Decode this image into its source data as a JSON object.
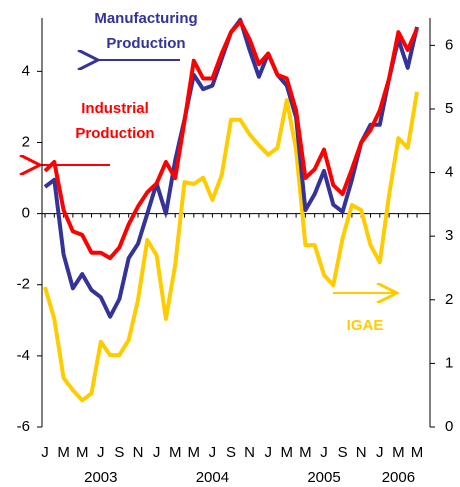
{
  "chart_data": {
    "type": "line",
    "categories": [
      "J",
      null,
      "M",
      null,
      "M",
      null,
      "J",
      null,
      "S",
      null,
      "N",
      null,
      "J",
      null,
      "M",
      null,
      "M",
      null,
      "J",
      null,
      "S",
      null,
      "N",
      null,
      "J",
      null,
      "M",
      null,
      "M",
      null,
      "J",
      null,
      "S",
      null,
      "N",
      null,
      "J",
      null,
      "M",
      null,
      "M"
    ],
    "year_labels": [
      "2003",
      "2004",
      "2005",
      "2006"
    ],
    "ylim": [
      -6,
      5.5
    ],
    "yticks": [
      -6,
      -4,
      -2,
      0,
      2,
      4
    ],
    "y2lim": [
      0,
      6.43
    ],
    "y2ticks": [
      0,
      1,
      2,
      3,
      4,
      5,
      6
    ],
    "series": [
      {
        "name": "IGAE",
        "color": "#ffcc00",
        "axis": "y2",
        "values": [
          2.2,
          1.7,
          0.77,
          0.58,
          0.42,
          0.53,
          1.34,
          1.13,
          1.13,
          1.37,
          2.0,
          2.94,
          2.7,
          1.7,
          2.55,
          3.85,
          3.82,
          3.92,
          3.57,
          3.96,
          4.83,
          4.83,
          4.6,
          4.43,
          4.28,
          4.39,
          5.14,
          4.36,
          2.86,
          2.86,
          2.39,
          2.23,
          2.97,
          3.49,
          3.41,
          2.86,
          2.59,
          3.65,
          4.54,
          4.39,
          5.27
        ]
      },
      {
        "name": "Manufacturing Production",
        "color": "#333399",
        "values": [
          0.75,
          0.95,
          -1.15,
          -2.1,
          -1.7,
          -2.15,
          -2.35,
          -2.9,
          -2.4,
          -1.25,
          -0.85,
          0,
          0.85,
          0,
          1.5,
          2.65,
          3.9,
          3.5,
          3.6,
          4.35,
          5.1,
          5.45,
          4.6,
          3.85,
          4.5,
          3.9,
          3.6,
          2.7,
          0.1,
          0.55,
          1.2,
          0.25,
          0.05,
          0.95,
          2.0,
          2.5,
          2.5,
          3.8,
          4.9,
          4.1,
          5.25
        ]
      },
      {
        "name": "Industrial Production",
        "color": "#ff0000",
        "values": [
          1.2,
          1.45,
          0.1,
          -0.5,
          -0.6,
          -1.1,
          -1.1,
          -1.25,
          -0.95,
          -0.3,
          0.2,
          0.6,
          0.85,
          1.45,
          1.0,
          2.6,
          4.3,
          3.8,
          3.8,
          4.5,
          5.1,
          5.4,
          4.9,
          4.2,
          4.5,
          3.9,
          3.8,
          2.9,
          1.0,
          1.25,
          1.8,
          0.8,
          0.55,
          1.25,
          2.0,
          2.35,
          2.9,
          3.8,
          5.1,
          4.6,
          5.2
        ]
      }
    ]
  }
}
